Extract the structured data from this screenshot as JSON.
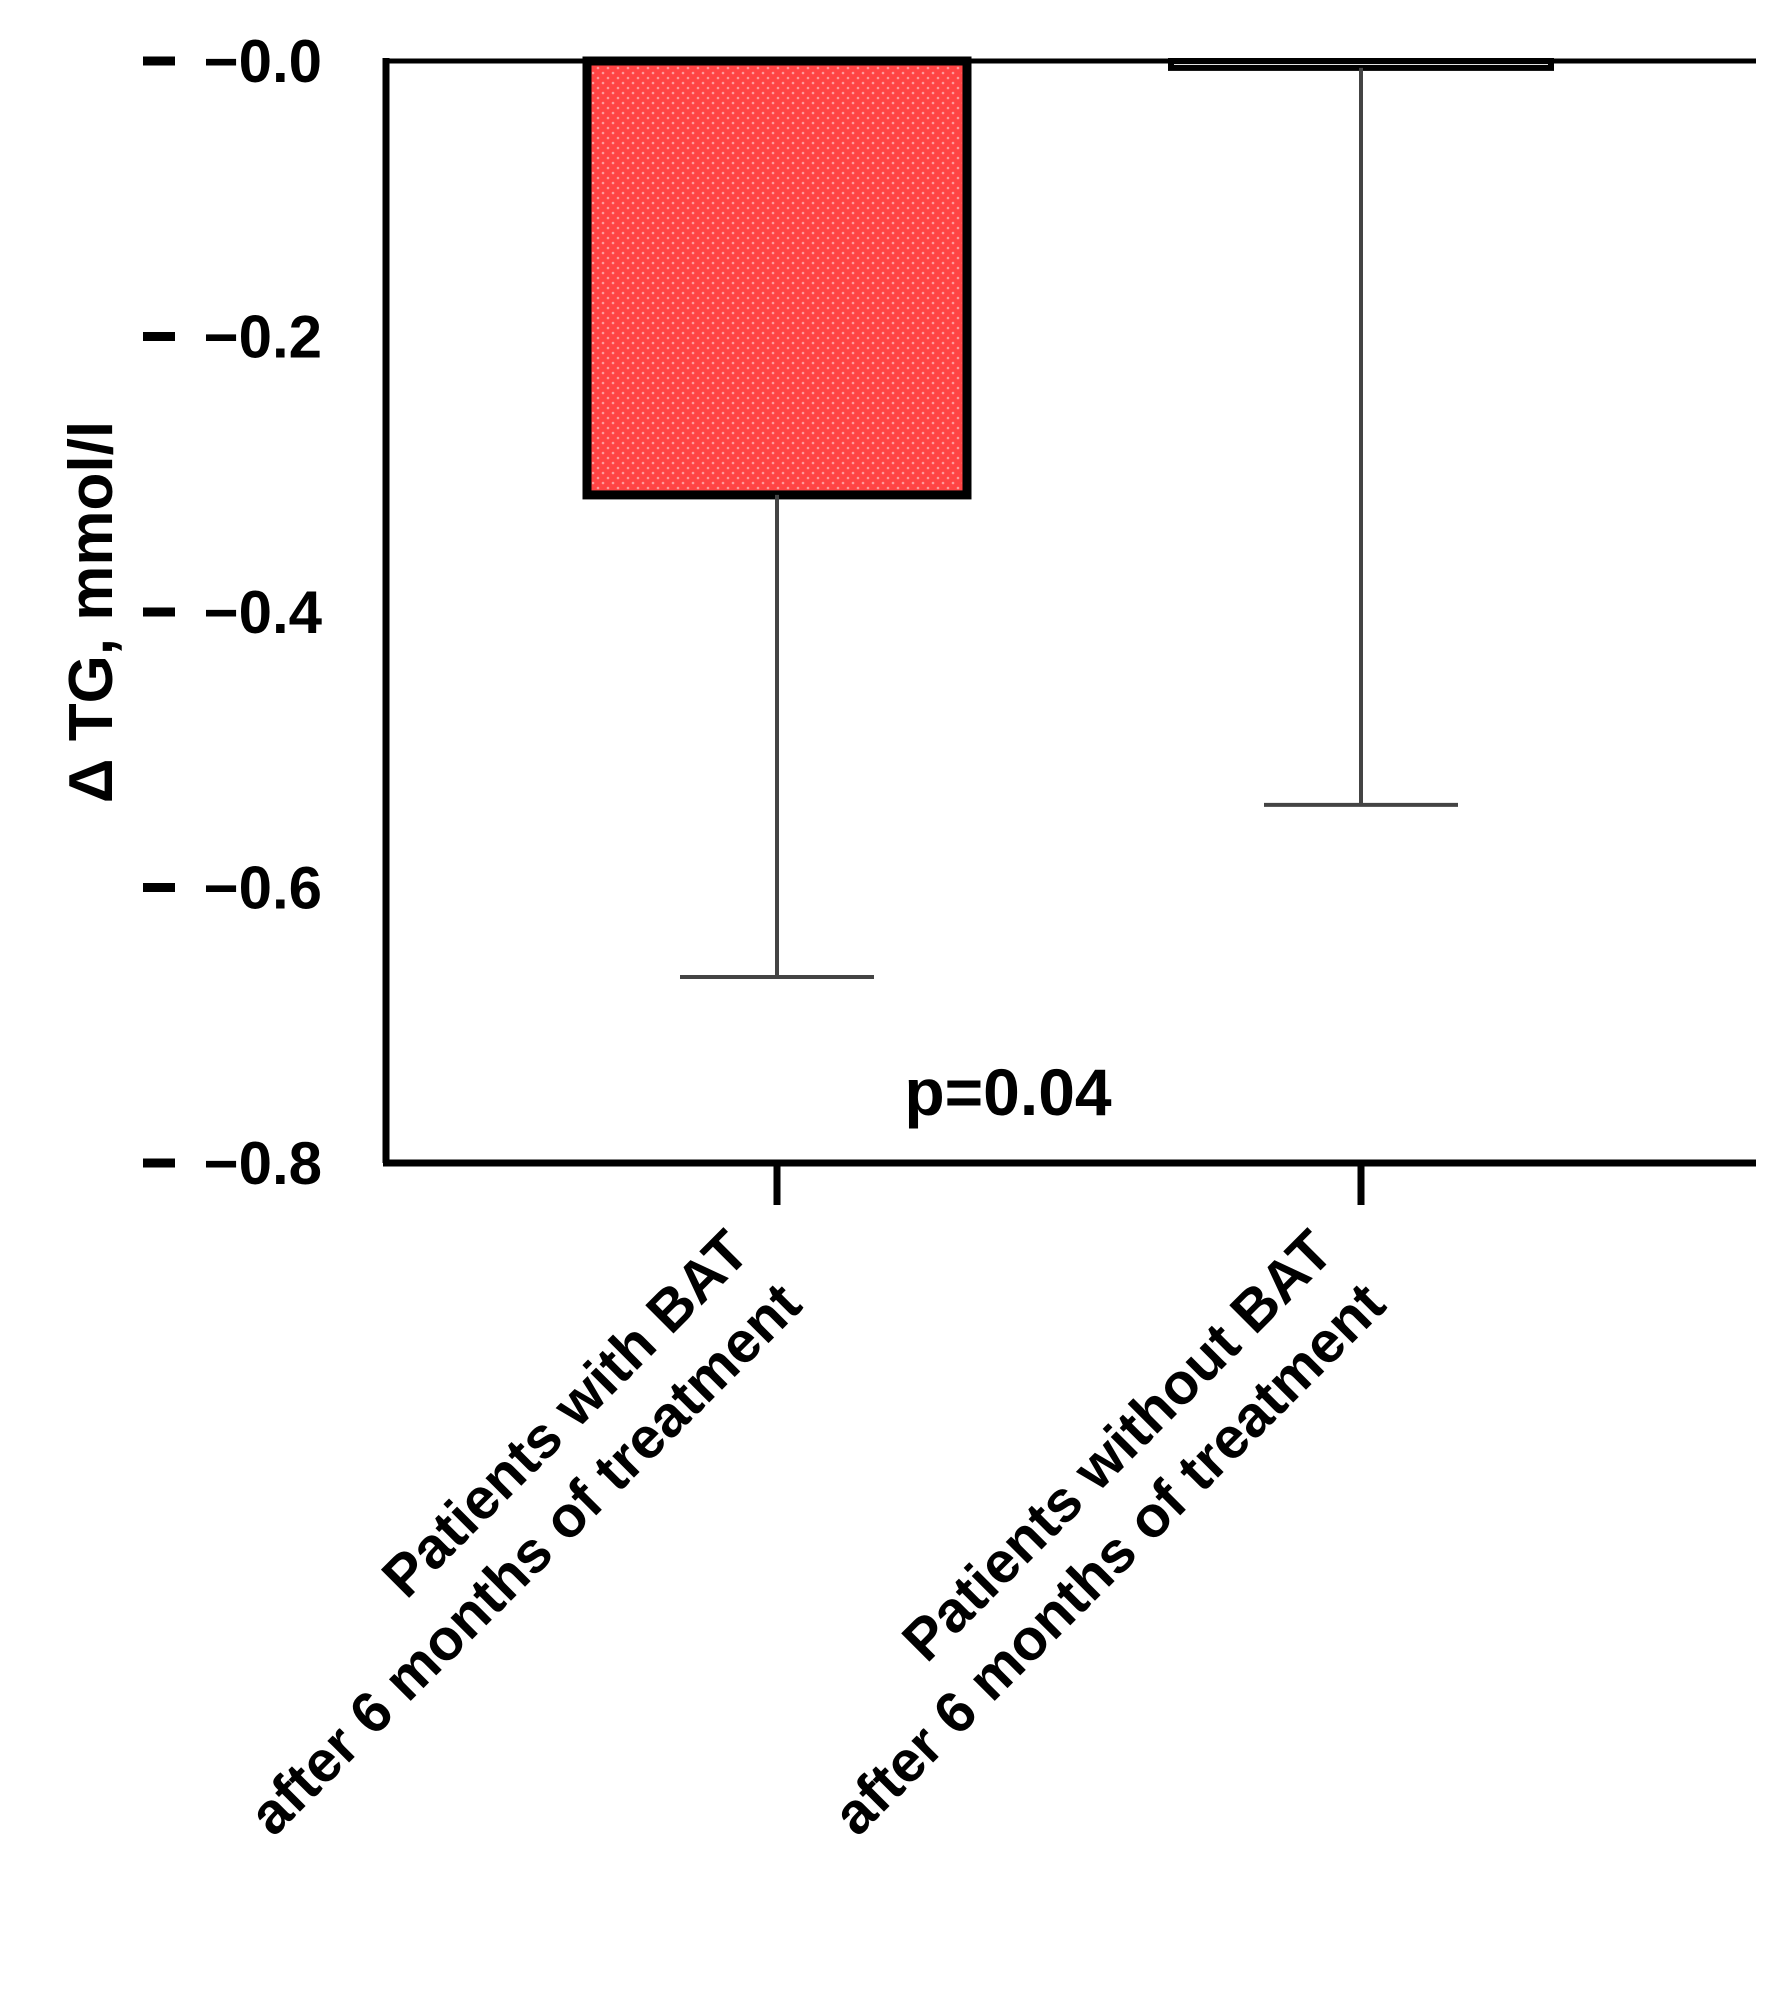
{
  "chart_data": {
    "type": "bar",
    "title": "",
    "xlabel": "",
    "ylabel": "Δ TG, mmol/l",
    "ylim": [
      -0.8,
      0.0
    ],
    "yticks": [
      {
        "value": 0.0,
        "label": "−0.0"
      },
      {
        "value": -0.2,
        "label": "−0.2"
      },
      {
        "value": -0.4,
        "label": "−0.4"
      },
      {
        "value": -0.6,
        "label": "−0.6"
      },
      {
        "value": -0.8,
        "label": "−0.8"
      }
    ],
    "categories": [
      {
        "line1": "Patients with BAT",
        "line2": "after 6 months of treatment"
      },
      {
        "line1": "Patients without BAT",
        "line2": "after 6 months of treatment"
      }
    ],
    "values": [
      -0.315,
      -0.005
    ],
    "error_low": [
      -0.665,
      -0.54
    ],
    "colors": [
      "#ff4444",
      "#ffffff"
    ],
    "annotation": "p=0.04",
    "grid": false
  }
}
